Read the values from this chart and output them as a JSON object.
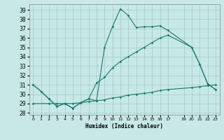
{
  "xlabel": "Humidex (Indice chaleur)",
  "bg_color": "#c8e8e8",
  "grid_color": "#a0c8c8",
  "line_color": "#1a7a6a",
  "ylim": [
    27.8,
    39.6
  ],
  "xlim": [
    -0.5,
    23.5
  ],
  "yticks": [
    28,
    29,
    30,
    31,
    32,
    33,
    34,
    35,
    36,
    37,
    38,
    39
  ],
  "xticks": [
    0,
    1,
    2,
    3,
    4,
    5,
    6,
    7,
    8,
    9,
    10,
    11,
    12,
    13,
    14,
    15,
    16,
    17,
    19,
    20,
    21,
    22,
    23
  ],
  "line1_x": [
    0,
    1,
    2,
    3,
    4,
    5,
    6,
    7,
    8,
    9,
    10,
    11,
    12,
    13,
    14,
    15,
    16,
    17,
    20,
    21,
    22,
    23
  ],
  "line1_y": [
    31,
    30.3,
    29.5,
    28.7,
    29.0,
    28.5,
    29.1,
    29.5,
    29.3,
    35.0,
    37.2,
    39.1,
    38.4,
    37.1,
    37.2,
    37.2,
    37.3,
    36.8,
    35.0,
    33.2,
    31.1,
    30.5
  ],
  "line2_x": [
    0,
    1,
    2,
    3,
    4,
    5,
    6,
    7,
    8,
    9,
    10,
    11,
    12,
    13,
    14,
    15,
    16,
    17,
    20,
    21,
    22,
    23
  ],
  "line2_y": [
    31,
    30.3,
    29.5,
    28.7,
    29.0,
    28.5,
    29.1,
    29.5,
    31.2,
    31.8,
    32.8,
    33.5,
    34.0,
    34.5,
    35.0,
    35.5,
    36.0,
    36.3,
    35.0,
    33.2,
    31.1,
    30.5
  ],
  "line3_x": [
    0,
    2,
    3,
    4,
    5,
    6,
    7,
    8,
    9,
    10,
    11,
    12,
    13,
    14,
    15,
    16,
    17,
    20,
    21,
    22,
    23
  ],
  "line3_y": [
    29.0,
    29.0,
    29.0,
    29.0,
    29.0,
    29.1,
    29.2,
    29.3,
    29.4,
    29.6,
    29.7,
    29.9,
    30.0,
    30.1,
    30.2,
    30.4,
    30.5,
    30.7,
    30.8,
    30.9,
    31.0
  ]
}
